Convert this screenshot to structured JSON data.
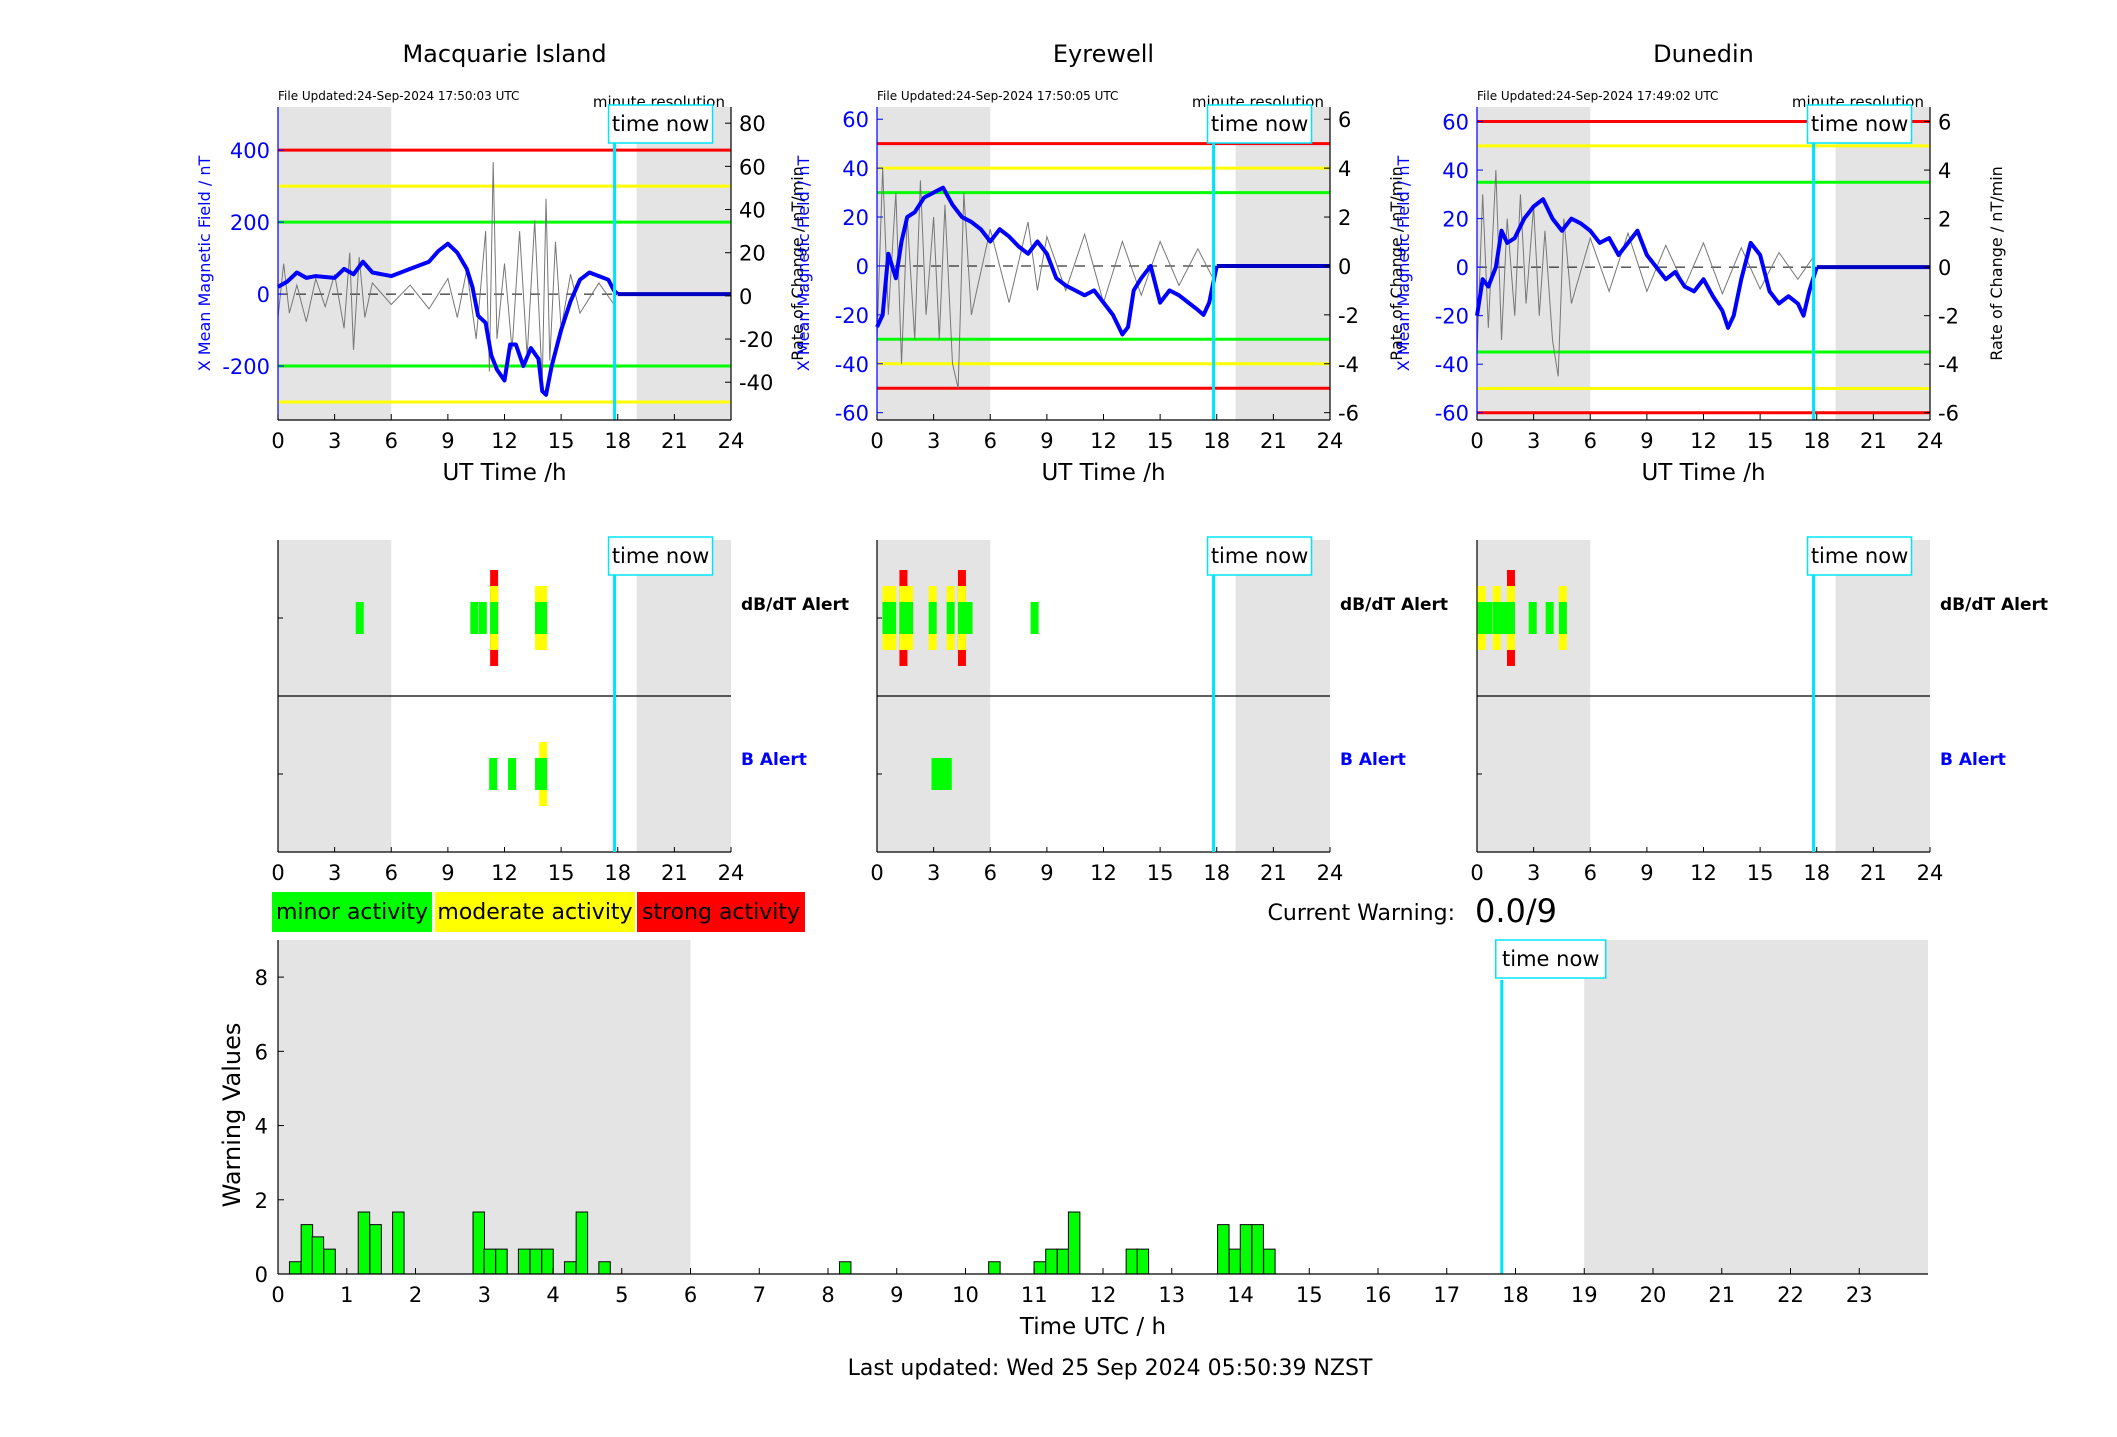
{
  "stations": [
    {
      "title": "Macquarie Island",
      "file_updated": "File Updated:24-Sep-2024 17:50:03 UTC",
      "resolution": "minute resolution",
      "left_ylabel": "X Mean Magnetic Field / nT",
      "right_ylabel": "Rate of Change / nT/min",
      "left_ylim": [
        -350,
        520
      ],
      "left_ticks": [
        -200,
        0,
        200,
        400
      ],
      "right_ylim": [
        -57.5,
        87.5
      ],
      "right_ticks": [
        -40,
        -20,
        0,
        20,
        40,
        60,
        80
      ],
      "thresholds": {
        "red": [
          400
        ],
        "yellow": [
          300,
          -300
        ],
        "green": [
          200,
          -200
        ]
      },
      "field_series": [
        [
          0,
          20
        ],
        [
          0.5,
          35
        ],
        [
          1,
          60
        ],
        [
          1.5,
          45
        ],
        [
          2,
          50
        ],
        [
          3,
          45
        ],
        [
          3.5,
          70
        ],
        [
          4,
          55
        ],
        [
          4.5,
          90
        ],
        [
          5,
          60
        ],
        [
          6,
          50
        ],
        [
          7,
          70
        ],
        [
          8,
          90
        ],
        [
          8.5,
          120
        ],
        [
          9,
          140
        ],
        [
          9.5,
          115
        ],
        [
          10,
          70
        ],
        [
          10.3,
          20
        ],
        [
          10.6,
          -60
        ],
        [
          11,
          -80
        ],
        [
          11.3,
          -170
        ],
        [
          11.6,
          -210
        ],
        [
          12,
          -240
        ],
        [
          12.3,
          -140
        ],
        [
          12.6,
          -140
        ],
        [
          13,
          -200
        ],
        [
          13.4,
          -150
        ],
        [
          13.8,
          -180
        ],
        [
          14,
          -270
        ],
        [
          14.2,
          -280
        ],
        [
          14.5,
          -200
        ],
        [
          15,
          -100
        ],
        [
          15.5,
          -20
        ],
        [
          16,
          40
        ],
        [
          16.5,
          60
        ],
        [
          17,
          50
        ],
        [
          17.5,
          40
        ],
        [
          17.8,
          10
        ],
        [
          18,
          0
        ],
        [
          24,
          0
        ]
      ],
      "field_flat_from": 18,
      "rate_noise": [
        [
          0,
          -10
        ],
        [
          0.3,
          15
        ],
        [
          0.6,
          -8
        ],
        [
          1,
          5
        ],
        [
          1.5,
          -12
        ],
        [
          2,
          8
        ],
        [
          2.5,
          -5
        ],
        [
          3,
          10
        ],
        [
          3.5,
          -15
        ],
        [
          3.8,
          20
        ],
        [
          4,
          -25
        ],
        [
          4.3,
          18
        ],
        [
          4.6,
          -10
        ],
        [
          5,
          6
        ],
        [
          6,
          -4
        ],
        [
          7,
          5
        ],
        [
          8,
          -6
        ],
        [
          9,
          8
        ],
        [
          9.5,
          -10
        ],
        [
          10,
          12
        ],
        [
          10.5,
          -20
        ],
        [
          11,
          30
        ],
        [
          11.2,
          -35
        ],
        [
          11.4,
          62
        ],
        [
          11.6,
          -20
        ],
        [
          12,
          15
        ],
        [
          12.4,
          -25
        ],
        [
          12.8,
          30
        ],
        [
          13.2,
          -28
        ],
        [
          13.6,
          35
        ],
        [
          14,
          -40
        ],
        [
          14.2,
          45
        ],
        [
          14.4,
          -30
        ],
        [
          14.7,
          25
        ],
        [
          15,
          -15
        ],
        [
          15.5,
          10
        ],
        [
          16,
          -8
        ],
        [
          17,
          6
        ],
        [
          17.8,
          -4
        ]
      ],
      "time_now_label": "time now",
      "time_now": 17.83,
      "dbdt_label": "dB/dT Alert",
      "b_label": "B Alert",
      "dbdt_bars": [
        [
          4.33,
          "minor"
        ],
        [
          10.4,
          "minor"
        ],
        [
          10.85,
          "minor"
        ],
        [
          11.45,
          "strong"
        ],
        [
          13.83,
          "moderate"
        ],
        [
          14.05,
          "moderate"
        ]
      ],
      "b_bars": [
        [
          11.4,
          "minor"
        ],
        [
          12.4,
          "minor"
        ],
        [
          13.83,
          "minor"
        ],
        [
          14.05,
          "moderate"
        ]
      ]
    },
    {
      "title": "Eyrewell",
      "file_updated": "File Updated:24-Sep-2024 17:50:05 UTC",
      "resolution": "minute resolution",
      "left_ylabel": "X Mean Magnetic Field / nT",
      "right_ylabel": "Rate of Change / nT/min",
      "left_ylim": [
        -63,
        65
      ],
      "left_ticks": [
        -60,
        -40,
        -20,
        0,
        20,
        40,
        60
      ],
      "right_ylim": [
        -6.3,
        6.5
      ],
      "right_ticks": [
        -6,
        -4,
        -2,
        0,
        2,
        4,
        6
      ],
      "thresholds": {
        "red": [
          50,
          -50
        ],
        "yellow": [
          40,
          -40
        ],
        "green": [
          30,
          -30
        ]
      },
      "field_series": [
        [
          0,
          -25
        ],
        [
          0.3,
          -20
        ],
        [
          0.6,
          5
        ],
        [
          1,
          -5
        ],
        [
          1.3,
          10
        ],
        [
          1.6,
          20
        ],
        [
          2,
          22
        ],
        [
          2.5,
          28
        ],
        [
          3,
          30
        ],
        [
          3.5,
          32
        ],
        [
          4,
          25
        ],
        [
          4.5,
          20
        ],
        [
          5,
          18
        ],
        [
          5.5,
          15
        ],
        [
          6,
          10
        ],
        [
          6.5,
          15
        ],
        [
          7,
          12
        ],
        [
          7.5,
          8
        ],
        [
          8,
          5
        ],
        [
          8.5,
          10
        ],
        [
          9,
          5
        ],
        [
          9.5,
          -5
        ],
        [
          10,
          -8
        ],
        [
          10.5,
          -10
        ],
        [
          11,
          -12
        ],
        [
          11.5,
          -10
        ],
        [
          12,
          -15
        ],
        [
          12.5,
          -20
        ],
        [
          13,
          -28
        ],
        [
          13.3,
          -25
        ],
        [
          13.6,
          -10
        ],
        [
          14,
          -5
        ],
        [
          14.5,
          0
        ],
        [
          15,
          -15
        ],
        [
          15.5,
          -10
        ],
        [
          16,
          -12
        ],
        [
          16.5,
          -15
        ],
        [
          17,
          -18
        ],
        [
          17.3,
          -20
        ],
        [
          17.6,
          -15
        ],
        [
          18,
          0
        ],
        [
          24,
          0
        ]
      ],
      "field_flat_from": 18,
      "rate_noise": [
        [
          0,
          -3
        ],
        [
          0.3,
          4
        ],
        [
          0.6,
          -2
        ],
        [
          1,
          3
        ],
        [
          1.3,
          -4
        ],
        [
          1.6,
          2
        ],
        [
          2,
          -3
        ],
        [
          2.3,
          3.5
        ],
        [
          2.6,
          -2
        ],
        [
          3,
          2
        ],
        [
          3.3,
          -3
        ],
        [
          3.6,
          2.5
        ],
        [
          4,
          -4
        ],
        [
          4.3,
          -5
        ],
        [
          4.6,
          3
        ],
        [
          5,
          -2
        ],
        [
          6,
          1.5
        ],
        [
          7,
          -1.5
        ],
        [
          8,
          1.8
        ],
        [
          8.5,
          -1
        ],
        [
          9,
          1.2
        ],
        [
          10,
          -1
        ],
        [
          11,
          1.3
        ],
        [
          12,
          -1.5
        ],
        [
          13,
          1
        ],
        [
          14,
          -1.2
        ],
        [
          15,
          1
        ],
        [
          16,
          -0.8
        ],
        [
          17,
          0.7
        ],
        [
          17.8,
          -0.5
        ]
      ],
      "time_now_label": "time now",
      "time_now": 17.83,
      "dbdt_label": "dB/dT Alert",
      "b_label": "B Alert",
      "dbdt_bars": [
        [
          0.5,
          "moderate"
        ],
        [
          0.8,
          "moderate"
        ],
        [
          1.4,
          "strong"
        ],
        [
          1.7,
          "moderate"
        ],
        [
          2.95,
          "moderate"
        ],
        [
          3.9,
          "moderate"
        ],
        [
          4.5,
          "strong"
        ],
        [
          4.85,
          "minor"
        ],
        [
          8.35,
          "minor"
        ]
      ],
      "b_bars": [
        [
          3.1,
          "minor"
        ],
        [
          3.45,
          "minor"
        ],
        [
          3.75,
          "minor"
        ]
      ]
    },
    {
      "title": "Dunedin",
      "file_updated": "File Updated:24-Sep-2024 17:49:02 UTC",
      "resolution": "minute resolution",
      "left_ylabel": "X Mean Magnetic Field / nT",
      "right_ylabel": "Rate of Change / nT/min",
      "left_ylim": [
        -63,
        66
      ],
      "left_ticks": [
        -60,
        -40,
        -20,
        0,
        20,
        40,
        60
      ],
      "right_ylim": [
        -6.3,
        6.6
      ],
      "right_ticks": [
        -6,
        -4,
        -2,
        0,
        2,
        4,
        6
      ],
      "thresholds": {
        "red": [
          60,
          -60
        ],
        "yellow": [
          50,
          -50
        ],
        "green": [
          35,
          -35
        ]
      },
      "field_series": [
        [
          0,
          -20
        ],
        [
          0.3,
          -5
        ],
        [
          0.6,
          -8
        ],
        [
          1,
          0
        ],
        [
          1.3,
          15
        ],
        [
          1.6,
          10
        ],
        [
          2,
          12
        ],
        [
          2.5,
          20
        ],
        [
          3,
          25
        ],
        [
          3.5,
          28
        ],
        [
          4,
          20
        ],
        [
          4.5,
          15
        ],
        [
          5,
          20
        ],
        [
          5.5,
          18
        ],
        [
          6,
          15
        ],
        [
          6.5,
          10
        ],
        [
          7,
          12
        ],
        [
          7.5,
          5
        ],
        [
          8,
          10
        ],
        [
          8.5,
          15
        ],
        [
          9,
          5
        ],
        [
          9.5,
          0
        ],
        [
          10,
          -5
        ],
        [
          10.5,
          -2
        ],
        [
          11,
          -8
        ],
        [
          11.5,
          -10
        ],
        [
          12,
          -5
        ],
        [
          12.5,
          -12
        ],
        [
          13,
          -18
        ],
        [
          13.3,
          -25
        ],
        [
          13.6,
          -20
        ],
        [
          14,
          -5
        ],
        [
          14.5,
          10
        ],
        [
          15,
          5
        ],
        [
          15.5,
          -10
        ],
        [
          16,
          -15
        ],
        [
          16.5,
          -12
        ],
        [
          17,
          -15
        ],
        [
          17.3,
          -20
        ],
        [
          17.6,
          -10
        ],
        [
          18,
          0
        ],
        [
          24,
          0
        ]
      ],
      "field_flat_from": 18,
      "rate_noise": [
        [
          0,
          -3.5
        ],
        [
          0.3,
          3
        ],
        [
          0.6,
          -2.5
        ],
        [
          1,
          4
        ],
        [
          1.3,
          -3
        ],
        [
          1.6,
          2
        ],
        [
          2,
          -2
        ],
        [
          2.3,
          3
        ],
        [
          2.6,
          -1.5
        ],
        [
          3,
          2.5
        ],
        [
          3.3,
          -2
        ],
        [
          3.6,
          1.5
        ],
        [
          4,
          -3
        ],
        [
          4.3,
          -4.5
        ],
        [
          4.6,
          2
        ],
        [
          5,
          -1.5
        ],
        [
          6,
          1.2
        ],
        [
          7,
          -1
        ],
        [
          8,
          1.4
        ],
        [
          9,
          -1
        ],
        [
          10,
          0.9
        ],
        [
          11,
          -0.8
        ],
        [
          12,
          1
        ],
        [
          13,
          -1.1
        ],
        [
          14,
          0.8
        ],
        [
          15,
          -0.9
        ],
        [
          16,
          0.6
        ],
        [
          17,
          -0.5
        ],
        [
          17.8,
          0.4
        ]
      ],
      "time_now_label": "time now",
      "time_now": 17.83,
      "dbdt_label": "dB/dT Alert",
      "b_label": "B Alert",
      "dbdt_bars": [
        [
          0.25,
          "moderate"
        ],
        [
          0.6,
          "minor"
        ],
        [
          1.05,
          "moderate"
        ],
        [
          1.45,
          "minor"
        ],
        [
          1.8,
          "strong"
        ],
        [
          2.95,
          "minor"
        ],
        [
          3.85,
          "minor"
        ],
        [
          4.55,
          "moderate"
        ]
      ],
      "b_bars": []
    }
  ],
  "alert_axis": {
    "xlim": [
      0,
      24
    ],
    "ticks": [
      0,
      3,
      6,
      9,
      12,
      15,
      18,
      21,
      24
    ],
    "xlabel": "UT Time /h",
    "night_shading": [
      [
        0,
        6
      ],
      [
        19,
        24
      ]
    ]
  },
  "legend": {
    "minor": {
      "label": "minor activity",
      "color": "#00ff00"
    },
    "moderate": {
      "label": "moderate activity",
      "color": "#ffff00"
    },
    "strong": {
      "label": "strong activity",
      "color": "#ff0000"
    }
  },
  "current_warning": {
    "label": "Current Warning:",
    "value": "0.0/9"
  },
  "chart_data": {
    "type": "bar",
    "xlabel": "Time UTC / h",
    "ylabel": "Warning Values",
    "xlim": [
      0,
      24
    ],
    "ylim": [
      0,
      9
    ],
    "xticks": [
      0,
      1,
      2,
      3,
      4,
      5,
      6,
      7,
      8,
      9,
      10,
      11,
      12,
      13,
      14,
      15,
      16,
      17,
      18,
      19,
      20,
      21,
      22,
      23
    ],
    "yticks": [
      0,
      2,
      4,
      6,
      8
    ],
    "night_shading": [
      [
        0,
        6
      ],
      [
        19,
        24
      ]
    ],
    "time_now_label": "time now",
    "time_now": 17.8,
    "bar_width": 0.1667,
    "bar_color": "#00ff00",
    "x": [
      0.25,
      0.42,
      0.58,
      0.75,
      1.25,
      1.42,
      1.75,
      2.92,
      3.08,
      3.25,
      3.58,
      3.75,
      3.92,
      4.25,
      4.42,
      4.75,
      8.25,
      10.42,
      11.08,
      11.25,
      11.42,
      11.58,
      12.42,
      12.58,
      13.75,
      13.92,
      14.08,
      14.25,
      14.42
    ],
    "values": [
      0.33,
      1.33,
      1.0,
      0.67,
      1.67,
      1.33,
      1.67,
      1.67,
      0.67,
      0.67,
      0.67,
      0.67,
      0.67,
      0.33,
      1.67,
      0.33,
      0.33,
      0.33,
      0.33,
      0.67,
      0.67,
      1.67,
      0.67,
      0.67,
      1.33,
      0.67,
      1.33,
      1.33,
      0.67
    ]
  },
  "last_updated": "Last updated: Wed 25 Sep 2024 05:50:39 NZST"
}
